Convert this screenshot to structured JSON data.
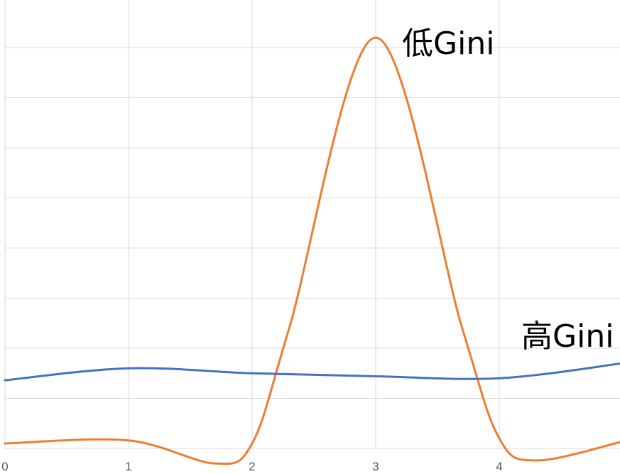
{
  "chart_data": {
    "type": "line",
    "smooth": true,
    "grid": true,
    "xlim": [
      0,
      5
    ],
    "ylim": [
      -0.1,
      4.0
    ],
    "x_ticks": [
      "0",
      "1",
      "2",
      "3",
      "4"
    ],
    "y_tick_values": [
      0,
      0.5,
      1,
      1.5,
      2,
      2.5,
      3,
      3.5,
      4
    ],
    "series": [
      {
        "name": "低Gini",
        "color": "#ed7d31",
        "x": [
          0,
          1,
          1.7,
          2,
          2.3,
          3,
          3.7,
          4,
          4.3,
          5
        ],
        "y": [
          0.05,
          0.08,
          -0.15,
          0.05,
          1.2,
          4.1,
          1.2,
          0.1,
          -0.12,
          0.07
        ]
      },
      {
        "name": "高Gini",
        "color": "#4472c4",
        "x": [
          0,
          1,
          2,
          3,
          4,
          5
        ],
        "y": [
          0.68,
          0.8,
          0.75,
          0.72,
          0.7,
          0.85
        ]
      }
    ],
    "annotations": [
      {
        "text": "低Gini",
        "series": 0
      },
      {
        "text": "高Gini",
        "series": 1
      }
    ]
  }
}
